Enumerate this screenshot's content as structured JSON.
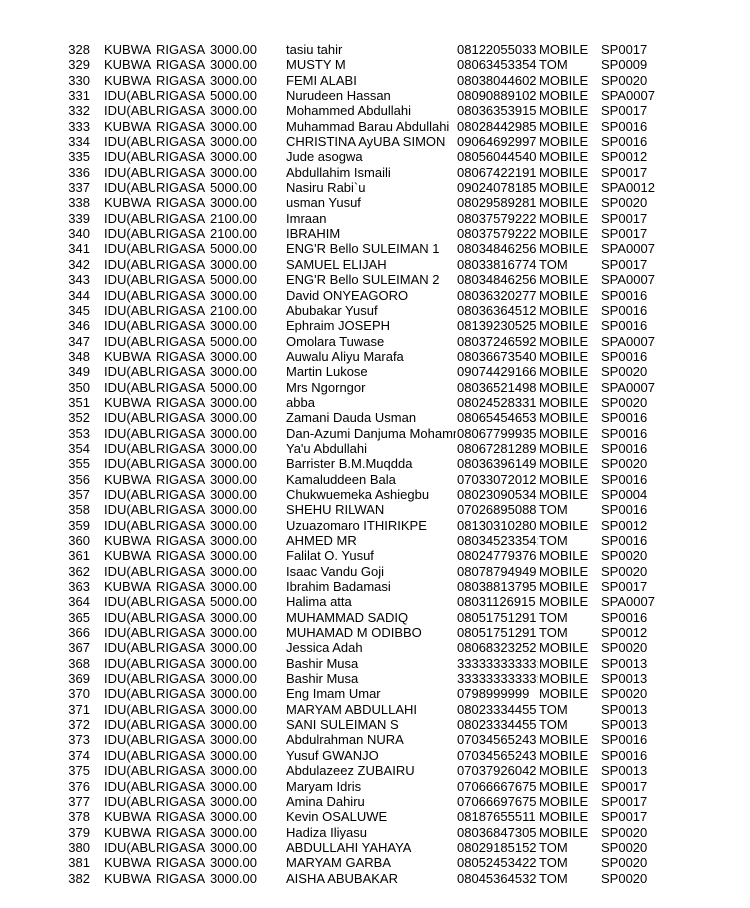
{
  "rows": [
    [
      "328",
      "KUBWA",
      "RIGASA",
      "3000.00",
      "tasiu tahir",
      "08122055033",
      "MOBILE",
      "SP0017"
    ],
    [
      "329",
      "KUBWA",
      "RIGASA",
      "3000.00",
      "MUSTY M",
      "08063453354",
      "TOM",
      "SP0009"
    ],
    [
      "330",
      "KUBWA",
      "RIGASA",
      "3000.00",
      "FEMI ALABI",
      "08038044602",
      "MOBILE",
      "SP0020"
    ],
    [
      "331",
      "IDU(ABUJA)",
      "RIGASA",
      "5000.00",
      "Nurudeen Hassan",
      "08090889102",
      "MOBILE",
      "SPA0007"
    ],
    [
      "332",
      "IDU(ABUJA)",
      "RIGASA",
      "3000.00",
      "Mohammed Abdullahi",
      "08036353915",
      "MOBILE",
      "SP0017"
    ],
    [
      "333",
      "KUBWA",
      "RIGASA",
      "3000.00",
      "Muhammad Barau Abdullahi",
      "08028442985",
      "MOBILE",
      "SP0016"
    ],
    [
      "334",
      "IDU(ABUJA)",
      "RIGASA",
      "3000.00",
      "CHRISTINA AyUBA SIMON",
      "09064692997",
      "MOBILE",
      "SP0016"
    ],
    [
      "335",
      "IDU(ABUJA)",
      "RIGASA",
      "3000.00",
      "Jude asogwa",
      "08056044540",
      "MOBILE",
      "SP0012"
    ],
    [
      "336",
      "IDU(ABUJA)",
      "RIGASA",
      "3000.00",
      "Abdullahim Ismaili",
      "08067422191",
      "MOBILE",
      "SP0017"
    ],
    [
      "337",
      "IDU(ABUJA)",
      "RIGASA",
      "5000.00",
      "Nasiru Rabi`u",
      "09024078185",
      "MOBILE",
      "SPA0012"
    ],
    [
      "338",
      "KUBWA",
      "RIGASA",
      "3000.00",
      "usman Yusuf",
      "08029589281",
      "MOBILE",
      "SP0020"
    ],
    [
      "339",
      "IDU(ABUJA)",
      "RIGASA",
      "2100.00",
      "Imraan",
      "08037579222",
      "MOBILE",
      "SP0017"
    ],
    [
      "340",
      "IDU(ABUJA)",
      "RIGASA",
      "2100.00",
      "IBRAHIM",
      "08037579222",
      "MOBILE",
      "SP0017"
    ],
    [
      "341",
      "IDU(ABUJA)",
      "RIGASA",
      "5000.00",
      "ENG'R Bello SULEIMAN 1",
      "08034846256",
      "MOBILE",
      "SPA0007"
    ],
    [
      "342",
      "IDU(ABUJA)",
      "RIGASA",
      "3000.00",
      "SAMUEL ELIJAH",
      "08033816774",
      "TOM",
      "SP0017"
    ],
    [
      "343",
      "IDU(ABUJA)",
      "RIGASA",
      "5000.00",
      "ENG'R Bello SULEIMAN 2",
      "08034846256",
      "MOBILE",
      "SPA0007"
    ],
    [
      "344",
      "IDU(ABUJA)",
      "RIGASA",
      "3000.00",
      "David ONYEAGORO",
      "08036320277",
      "MOBILE",
      "SP0016"
    ],
    [
      "345",
      "IDU(ABUJA)",
      "RIGASA",
      "2100.00",
      "Abubakar Yusuf",
      "08036364512",
      "MOBILE",
      "SP0016"
    ],
    [
      "346",
      "IDU(ABUJA)",
      "RIGASA",
      "3000.00",
      "Ephraim JOSEPH",
      "08139230525",
      "MOBILE",
      "SP0016"
    ],
    [
      "347",
      "IDU(ABUJA)",
      "RIGASA",
      "5000.00",
      "Omolara Tuwase",
      "08037246592",
      "MOBILE",
      "SPA0007"
    ],
    [
      "348",
      "KUBWA",
      "RIGASA",
      "3000.00",
      "Auwalu Aliyu Marafa",
      "08036673540",
      "MOBILE",
      "SP0016"
    ],
    [
      "349",
      "IDU(ABUJA)",
      "RIGASA",
      "3000.00",
      "Martin Lukose",
      "09074429166",
      "MOBILE",
      "SP0020"
    ],
    [
      "350",
      "IDU(ABUJA)",
      "RIGASA",
      "5000.00",
      "Mrs Ngorngor",
      "08036521498",
      "MOBILE",
      "SPA0007"
    ],
    [
      "351",
      "KUBWA",
      "RIGASA",
      "3000.00",
      "abba",
      "08024528331",
      "MOBILE",
      "SP0020"
    ],
    [
      "352",
      "IDU(ABUJA)",
      "RIGASA",
      "3000.00",
      "Zamani Dauda Usman",
      "08065454653",
      "MOBILE",
      "SP0016"
    ],
    [
      "353",
      "IDU(ABUJA)",
      "RIGASA",
      "3000.00",
      "Dan-Azumi Danjuma Mohammed",
      "08067799935",
      "MOBILE",
      "SP0016"
    ],
    [
      "354",
      "IDU(ABUJA)",
      "RIGASA",
      "3000.00",
      "Ya'u Abdullahi",
      "08067281289",
      "MOBILE",
      "SP0016"
    ],
    [
      "355",
      "IDU(ABUJA)",
      "RIGASA",
      "3000.00",
      "Barrister B.M.Muqdda",
      "08036396149",
      "MOBILE",
      "SP0020"
    ],
    [
      "356",
      "KUBWA",
      "RIGASA",
      "3000.00",
      "Kamaluddeen Bala",
      "07033072012",
      "MOBILE",
      "SP0016"
    ],
    [
      "357",
      "IDU(ABUJA)",
      "RIGASA",
      "3000.00",
      "Chukwuemeka Ashiegbu",
      "08023090534",
      "MOBILE",
      "SP0004"
    ],
    [
      "358",
      "IDU(ABUJA)",
      "RIGASA",
      "3000.00",
      "SHEHU RILWAN",
      "07026895088",
      "TOM",
      "SP0016"
    ],
    [
      "359",
      "IDU(ABUJA)",
      "RIGASA",
      "3000.00",
      "Uzuazomaro ITHIRIKPE",
      "08130310280",
      "MOBILE",
      "SP0012"
    ],
    [
      "360",
      "KUBWA",
      "RIGASA",
      "3000.00",
      "AHMED MR",
      "08034523354;",
      "TOM",
      "SP0016"
    ],
    [
      "361",
      "KUBWA",
      "RIGASA",
      "3000.00",
      "Falilat O. Yusuf",
      "08024779376",
      "MOBILE",
      "SP0020"
    ],
    [
      "362",
      "IDU(ABUJA)",
      "RIGASA",
      "3000.00",
      "Isaac Vandu Goji",
      "08078794949",
      "MOBILE",
      "SP0020"
    ],
    [
      "363",
      "KUBWA",
      "RIGASA",
      "3000.00",
      "Ibrahim Badamasi",
      "08038813795",
      "MOBILE",
      "SP0017"
    ],
    [
      "364",
      "IDU(ABUJA)",
      "RIGASA",
      "5000.00",
      "Halima atta",
      "08031126915",
      "MOBILE",
      "SPA0007"
    ],
    [
      "365",
      "IDU(ABUJA)",
      "RIGASA",
      "3000.00",
      "MUHAMMAD SADIQ",
      "08051751291",
      "TOM",
      "SP0016"
    ],
    [
      "366",
      "IDU(ABUJA)",
      "RIGASA",
      "3000.00",
      "MUHAMAD M ODIBBO",
      "08051751291",
      "TOM",
      "SP0012"
    ],
    [
      "367",
      "IDU(ABUJA)",
      "RIGASA",
      "3000.00",
      "Jessica Adah",
      "08068323252",
      "MOBILE",
      "SP0020"
    ],
    [
      "368",
      "IDU(ABUJA)",
      "RIGASA",
      "3000.00",
      "Bashir Musa",
      "33333333333;",
      "MOBILE",
      "SP0013"
    ],
    [
      "369",
      "IDU(ABUJA)",
      "RIGASA",
      "3000.00",
      "Bashir Musa",
      "33333333333;",
      "MOBILE",
      "SP0013"
    ],
    [
      "370",
      "IDU(ABUJA)",
      "RIGASA",
      "3000.00",
      "Eng Imam Umar",
      "0798999999",
      "MOBILE",
      "SP0020"
    ],
    [
      "371",
      "IDU(ABUJA)",
      "RIGASA",
      "3000.00",
      "MARYAM ABDULLAHI",
      "08023334455",
      "TOM",
      "SP0013"
    ],
    [
      "372",
      "IDU(ABUJA)",
      "RIGASA",
      "3000.00",
      "SANI SULEIMAN S",
      "08023334455",
      "TOM",
      "SP0013"
    ],
    [
      "373",
      "IDU(ABUJA)",
      "RIGASA",
      "3000.00",
      "Abdulrahman NURA",
      "07034565243",
      "MOBILE",
      "SP0016"
    ],
    [
      "374",
      "IDU(ABUJA)",
      "RIGASA",
      "3000.00",
      "Yusuf GWANJO",
      "07034565243",
      "MOBILE",
      "SP0016"
    ],
    [
      "375",
      "IDU(ABUJA)",
      "RIGASA",
      "3000.00",
      "Abdulazeez  ZUBAIRU",
      "07037926042",
      "MOBILE",
      "SP0013"
    ],
    [
      "376",
      "IDU(ABUJA)",
      "RIGASA",
      "3000.00",
      "Maryam Idris",
      "07066667675",
      "MOBILE",
      "SP0017"
    ],
    [
      "377",
      "IDU(ABUJA)",
      "RIGASA",
      "3000.00",
      "Amina Dahiru",
      "07066697675",
      "MOBILE",
      "SP0017"
    ],
    [
      "378",
      "KUBWA",
      "RIGASA",
      "3000.00",
      "Kevin OSALUWE",
      "08187655511",
      "MOBILE",
      "SP0017"
    ],
    [
      "379",
      "KUBWA",
      "RIGASA",
      "3000.00",
      "Hadiza Iliyasu",
      "08036847305",
      "MOBILE",
      "SP0020"
    ],
    [
      "380",
      "IDU(ABUJA)",
      "RIGASA",
      "3000.00",
      "ABDULLAHI YAHAYA",
      "08029185152",
      "TOM",
      "SP0020"
    ],
    [
      "381",
      "KUBWA",
      "RIGASA",
      "3000.00",
      "MARYAM GARBA",
      "08052453422",
      "TOM",
      "SP0020"
    ],
    [
      "382",
      "KUBWA",
      "RIGASA",
      "3000.00",
      "AISHA ABUBAKAR",
      "08045364532",
      "TOM",
      "SP0020"
    ]
  ]
}
